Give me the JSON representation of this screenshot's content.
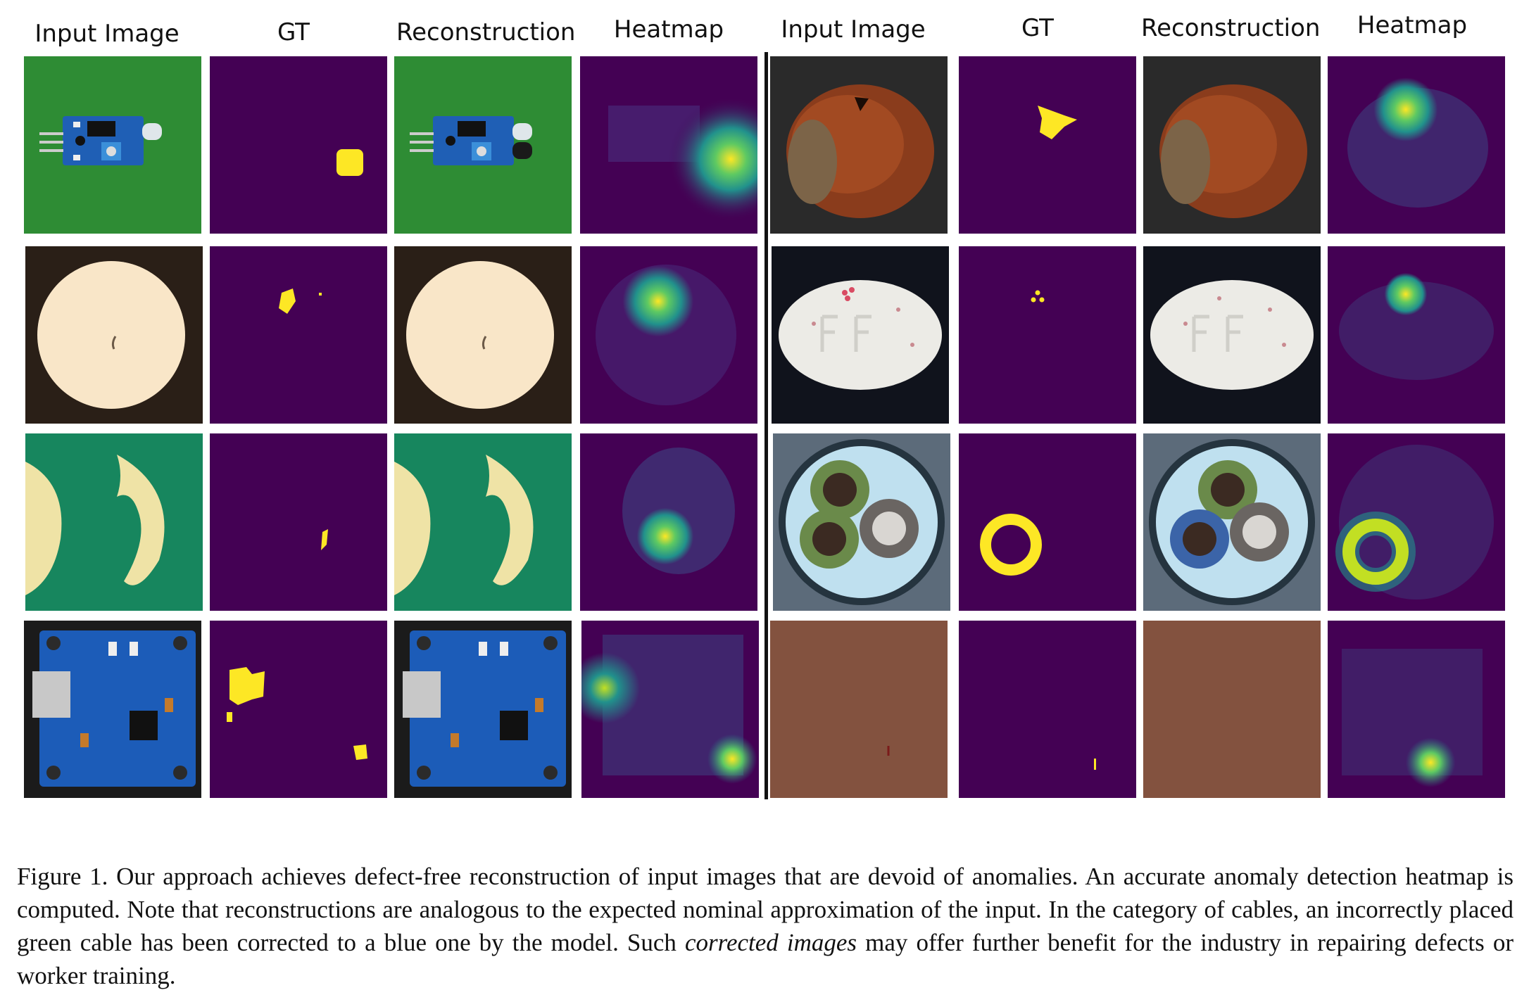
{
  "headers": [
    "Input Image",
    "GT",
    "Reconstruction",
    "Heatmap",
    "Input Image",
    "GT",
    "Reconstruction",
    "Heatmap"
  ],
  "rows": [
    {
      "left": "transistor-board",
      "right": "hazelnut"
    },
    {
      "left": "round-object",
      "right": "pill"
    },
    {
      "left": "pasta",
      "right": "cable"
    },
    {
      "left": "pcb-charger",
      "right": "leather"
    }
  ],
  "colors": {
    "viridis_bg": "#440154",
    "viridis_mid": "#21918c",
    "viridis_hot": "#fde725",
    "gt_fg": "#fde725",
    "gt_bg": "#440154"
  },
  "caption": {
    "part1": "Figure 1. Our approach achieves defect-free reconstruction of input images that are devoid of anomalies. An accurate anomaly detection heatmap is computed. Note that reconstructions are analogous to the expected nominal approximation of the input. In the category of cables, an incorrectly placed green cable has been corrected to a blue one by the model. Such ",
    "italic": "corrected images",
    "part2": " may offer further benefit for the industry in repairing defects or worker training."
  }
}
